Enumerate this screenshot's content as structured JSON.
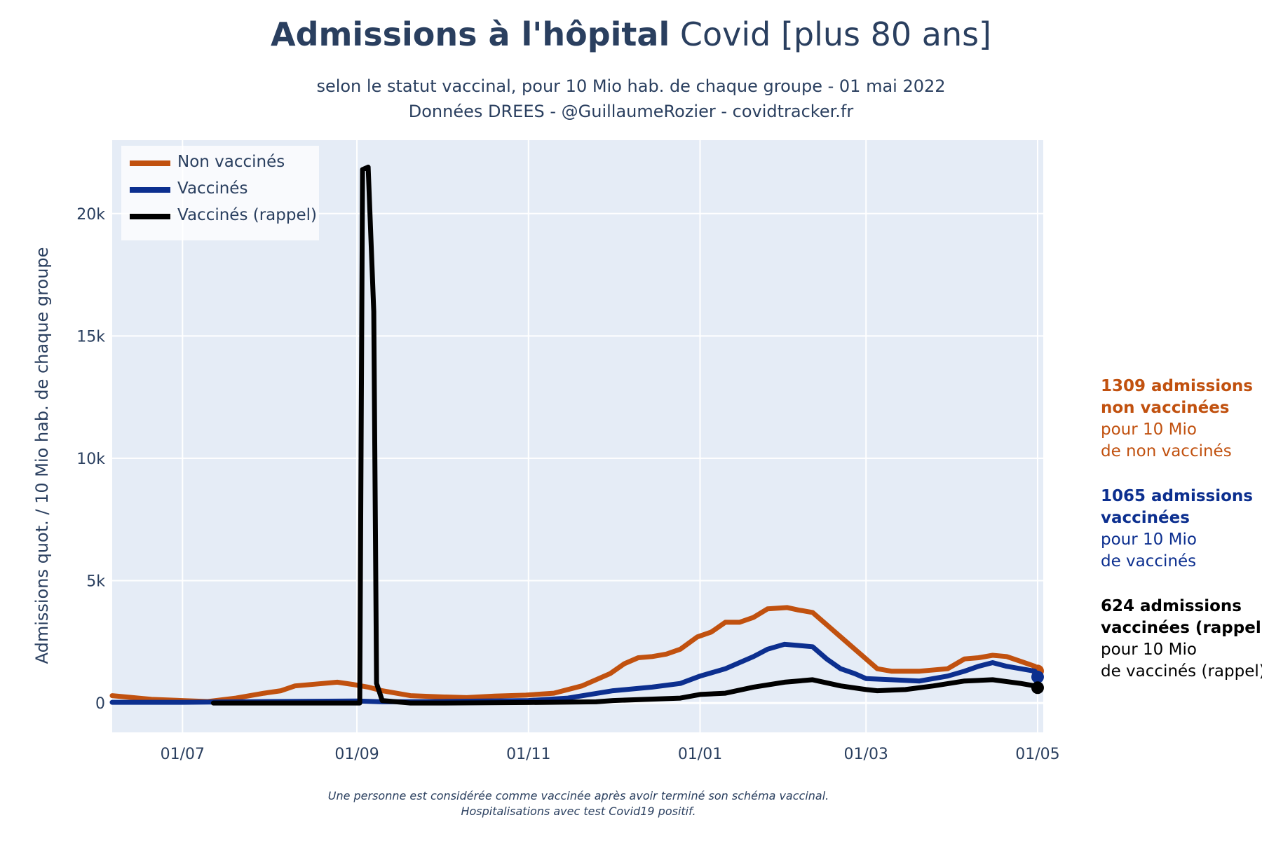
{
  "header": {
    "title_bold": "Admissions à l'hôpital",
    "title_rest": " Covid [plus 80 ans]",
    "subtitle_line1": "selon le statut vaccinal, pour 10 Mio hab. de chaque groupe - 01 mai 2022",
    "subtitle_line2": "Données DREES - @GuillaumeRozier - covidtracker.fr"
  },
  "legend": [
    {
      "label": "Non vaccinés",
      "color": "#c1510f"
    },
    {
      "label": "Vaccinés",
      "color": "#0c2f8f"
    },
    {
      "label": "Vaccinés (rappel)",
      "color": "#000000"
    }
  ],
  "annotations": [
    {
      "bold1": "1309 admissions",
      "bold2": "non vaccinées",
      "line3": "pour 10 Mio",
      "line4": "de non vaccinés",
      "color": "#c1510f"
    },
    {
      "bold1": "1065 admissions",
      "bold2": "vaccinées",
      "line3": "pour 10 Mio",
      "line4": "de vaccinés",
      "color": "#0c2f8f"
    },
    {
      "bold1": "624 admissions",
      "bold2": "vaccinées (rappel)",
      "line3": "pour 10 Mio",
      "line4": "de vaccinés (rappel)",
      "color": "#000000"
    }
  ],
  "footnote": {
    "line1": "Une personne est considérée comme vaccinée après avoir terminé son schéma vaccinal.",
    "line2": "Hospitalisations avec test Covid19 positif."
  },
  "chart_data": {
    "type": "line",
    "title": "Admissions à l'hôpital Covid [plus 80 ans]",
    "ylabel": "Admissions quot. / 10 Mio hab. de chaque groupe",
    "xlabel": "",
    "x_range": [
      "2021-06-06",
      "2022-05-03"
    ],
    "ylim": [
      -1200,
      23000
    ],
    "x_ticks": [
      {
        "date": "2021-07-01",
        "label": "01/07"
      },
      {
        "date": "2021-09-01",
        "label": "01/09"
      },
      {
        "date": "2021-11-01",
        "label": "01/11"
      },
      {
        "date": "2022-01-01",
        "label": "01/01"
      },
      {
        "date": "2022-03-01",
        "label": "01/03"
      },
      {
        "date": "2022-05-01",
        "label": "01/05"
      }
    ],
    "y_ticks": [
      {
        "value": 0,
        "label": "0"
      },
      {
        "value": 5000,
        "label": "5k"
      },
      {
        "value": 10000,
        "label": "10k"
      },
      {
        "value": 15000,
        "label": "15k"
      },
      {
        "value": 20000,
        "label": "20k"
      }
    ],
    "grid": true,
    "legend_position": "top-left",
    "series": [
      {
        "name": "Non vaccinés",
        "color": "#c1510f",
        "points": [
          [
            "2021-06-06",
            300
          ],
          [
            "2021-06-20",
            150
          ],
          [
            "2021-07-01",
            100
          ],
          [
            "2021-07-10",
            60
          ],
          [
            "2021-07-20",
            200
          ],
          [
            "2021-07-30",
            400
          ],
          [
            "2021-08-05",
            500
          ],
          [
            "2021-08-10",
            700
          ],
          [
            "2021-08-20",
            800
          ],
          [
            "2021-08-25",
            850
          ],
          [
            "2021-08-31",
            750
          ],
          [
            "2021-09-05",
            650
          ],
          [
            "2021-09-10",
            500
          ],
          [
            "2021-09-20",
            300
          ],
          [
            "2021-10-01",
            250
          ],
          [
            "2021-10-10",
            220
          ],
          [
            "2021-10-20",
            280
          ],
          [
            "2021-10-31",
            320
          ],
          [
            "2021-11-10",
            400
          ],
          [
            "2021-11-20",
            700
          ],
          [
            "2021-11-30",
            1200
          ],
          [
            "2021-12-05",
            1600
          ],
          [
            "2021-12-10",
            1850
          ],
          [
            "2021-12-15",
            1900
          ],
          [
            "2021-12-20",
            2000
          ],
          [
            "2021-12-25",
            2200
          ],
          [
            "2021-12-31",
            2700
          ],
          [
            "2022-01-05",
            2900
          ],
          [
            "2022-01-10",
            3300
          ],
          [
            "2022-01-15",
            3300
          ],
          [
            "2022-01-20",
            3500
          ],
          [
            "2022-01-25",
            3850
          ],
          [
            "2022-02-01",
            3900
          ],
          [
            "2022-02-05",
            3800
          ],
          [
            "2022-02-10",
            3700
          ],
          [
            "2022-02-15",
            3200
          ],
          [
            "2022-02-20",
            2700
          ],
          [
            "2022-02-25",
            2200
          ],
          [
            "2022-03-01",
            1800
          ],
          [
            "2022-03-05",
            1400
          ],
          [
            "2022-03-10",
            1300
          ],
          [
            "2022-03-20",
            1300
          ],
          [
            "2022-03-30",
            1400
          ],
          [
            "2022-04-05",
            1800
          ],
          [
            "2022-04-10",
            1850
          ],
          [
            "2022-04-15",
            1950
          ],
          [
            "2022-04-20",
            1900
          ],
          [
            "2022-04-25",
            1700
          ],
          [
            "2022-04-30",
            1500
          ],
          [
            "2022-05-01",
            1309
          ]
        ]
      },
      {
        "name": "Vaccinés",
        "color": "#0c2f8f",
        "points": [
          [
            "2021-06-06",
            30
          ],
          [
            "2021-07-01",
            30
          ],
          [
            "2021-08-01",
            60
          ],
          [
            "2021-09-01",
            80
          ],
          [
            "2021-09-10",
            50
          ],
          [
            "2021-10-01",
            60
          ],
          [
            "2021-11-01",
            100
          ],
          [
            "2021-11-15",
            200
          ],
          [
            "2021-12-01",
            500
          ],
          [
            "2021-12-15",
            650
          ],
          [
            "2021-12-25",
            800
          ],
          [
            "2022-01-01",
            1100
          ],
          [
            "2022-01-10",
            1400
          ],
          [
            "2022-01-20",
            1900
          ],
          [
            "2022-01-25",
            2200
          ],
          [
            "2022-01-31",
            2400
          ],
          [
            "2022-02-05",
            2350
          ],
          [
            "2022-02-10",
            2300
          ],
          [
            "2022-02-15",
            1800
          ],
          [
            "2022-02-20",
            1400
          ],
          [
            "2022-02-25",
            1200
          ],
          [
            "2022-03-01",
            1000
          ],
          [
            "2022-03-10",
            950
          ],
          [
            "2022-03-20",
            900
          ],
          [
            "2022-03-30",
            1100
          ],
          [
            "2022-04-05",
            1300
          ],
          [
            "2022-04-10",
            1500
          ],
          [
            "2022-04-15",
            1650
          ],
          [
            "2022-04-20",
            1500
          ],
          [
            "2022-04-25",
            1400
          ],
          [
            "2022-04-30",
            1300
          ],
          [
            "2022-05-01",
            1065
          ]
        ]
      },
      {
        "name": "Vaccinés (rappel)",
        "color": "#000000",
        "points": [
          [
            "2021-07-12",
            0
          ],
          [
            "2021-09-02",
            0
          ],
          [
            "2021-09-03",
            21800
          ],
          [
            "2021-09-05",
            21900
          ],
          [
            "2021-09-07",
            16000
          ],
          [
            "2021-09-08",
            800
          ],
          [
            "2021-09-10",
            100
          ],
          [
            "2021-09-20",
            0
          ],
          [
            "2021-10-01",
            0
          ],
          [
            "2021-11-01",
            20
          ],
          [
            "2021-11-25",
            50
          ],
          [
            "2021-12-01",
            100
          ],
          [
            "2021-12-25",
            200
          ],
          [
            "2022-01-01",
            350
          ],
          [
            "2022-01-10",
            400
          ],
          [
            "2022-01-20",
            650
          ],
          [
            "2022-01-31",
            850
          ],
          [
            "2022-02-10",
            950
          ],
          [
            "2022-02-20",
            700
          ],
          [
            "2022-03-01",
            550
          ],
          [
            "2022-03-05",
            500
          ],
          [
            "2022-03-15",
            550
          ],
          [
            "2022-03-25",
            700
          ],
          [
            "2022-04-05",
            900
          ],
          [
            "2022-04-15",
            950
          ],
          [
            "2022-04-25",
            800
          ],
          [
            "2022-04-30",
            700
          ],
          [
            "2022-05-01",
            624
          ]
        ]
      }
    ]
  }
}
